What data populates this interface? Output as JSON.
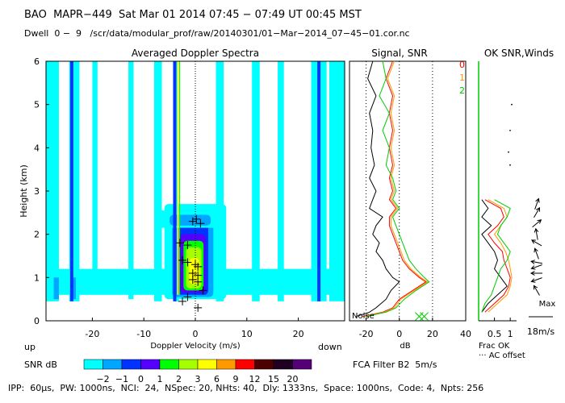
{
  "header": {
    "line1": "BAO  MAPR−449  Sat Mar 01 2014 07:45 − 07:49 UT 00:45 MST",
    "line2": "Dwell  0 −  9   /scr/data/modular_prof/raw/20140301/01−Mar−2014_07−45−01.cor.nc"
  },
  "footer": {
    "text": "IPP:  60μs,  PW: 1000ns,  NCI:  24,  NSpec: 20, NHts: 40,  Dly: 1333ns,  Space: 1000ns,  Code: 4,  Npts: 256",
    "filter": "FCA Filter B2  5m/s"
  },
  "colorbar": {
    "label": "SNR dB",
    "up": "up",
    "down": "down",
    "ticks": [
      "−2",
      "−1",
      "0",
      "1",
      "2",
      "3",
      "6",
      "9",
      "12",
      "15",
      "20"
    ],
    "colors": [
      "#00ffff",
      "#00a6ff",
      "#0033ff",
      "#5500ff",
      "#00ff00",
      "#a6ff00",
      "#ffff00",
      "#ff9900",
      "#ff0000",
      "#4d0000",
      "#200020",
      "#550077"
    ]
  },
  "chart_data": [
    {
      "type": "heatmap",
      "title": "Averaged Doppler Spectra",
      "xlabel": "Doppler Velocity (m/s)",
      "ylabel": "Height (km)",
      "xlim": [
        -29,
        29
      ],
      "ylim": [
        0,
        6
      ],
      "xticks": [
        -20,
        -10,
        0,
        10,
        20
      ],
      "yticks": [
        0,
        1,
        2,
        3,
        4,
        5,
        6
      ],
      "ground_clutter_lines_ms": [
        -24,
        -4,
        24
      ],
      "peak_markers": [
        {
          "v": 0.2,
          "h": 2.35
        },
        {
          "v": -0.5,
          "h": 2.3
        },
        {
          "v": 1.0,
          "h": 2.25
        },
        {
          "v": -3.0,
          "h": 1.8
        },
        {
          "v": -1.5,
          "h": 1.75
        },
        {
          "v": -2.5,
          "h": 1.4
        },
        {
          "v": -1.5,
          "h": 1.35
        },
        {
          "v": 0,
          "h": 1.3
        },
        {
          "v": 0.5,
          "h": 1.25
        },
        {
          "v": -0.5,
          "h": 1.1
        },
        {
          "v": 0.5,
          "h": 1.05
        },
        {
          "v": -0.5,
          "h": 0.95
        },
        {
          "v": 0.5,
          "h": 0.9
        },
        {
          "v": 1.5,
          "h": 0.7
        },
        {
          "v": -1.5,
          "h": 0.55
        },
        {
          "v": -2.5,
          "h": 0.45
        },
        {
          "v": 0.5,
          "h": 0.3
        }
      ]
    },
    {
      "type": "line",
      "title": "Signal, SNR",
      "xlabel": "dB",
      "xlim": [
        -30,
        40
      ],
      "ylim": [
        0,
        6
      ],
      "xticks": [
        -20,
        0,
        20,
        40
      ],
      "noise_label": "Noise",
      "reference_lines_db": [
        -20,
        0,
        20
      ],
      "series": [
        {
          "name": "",
          "color": "#000000",
          "h": [
            0.1,
            0.2,
            0.3,
            0.5,
            0.7,
            0.9,
            1.0,
            1.2,
            1.4,
            1.6,
            1.8,
            2.0,
            2.2,
            2.4,
            2.6,
            2.8,
            3.0,
            3.3,
            3.6,
            4.0,
            4.4,
            4.8,
            5.2,
            5.6,
            6.0
          ],
          "v": [
            -26,
            -18,
            -14,
            -8,
            -5,
            0,
            -4,
            -8,
            -10,
            -14,
            -12,
            -16,
            -14,
            -10,
            -18,
            -16,
            -14,
            -18,
            -15,
            -17,
            -16,
            -18,
            -14,
            -19,
            -16
          ]
        },
        {
          "name": "0",
          "color": "#ff0000",
          "h": [
            0.1,
            0.2,
            0.3,
            0.5,
            0.7,
            0.9,
            1.0,
            1.2,
            1.4,
            1.6,
            1.8,
            2.0,
            2.2,
            2.4,
            2.6,
            2.8,
            3.0,
            3.3,
            3.6,
            4.0,
            4.4,
            4.8,
            5.2,
            5.6,
            6.0
          ],
          "v": [
            -22,
            -10,
            -4,
            0,
            8,
            16,
            12,
            6,
            2,
            0,
            -2,
            -4,
            -6,
            -6,
            -2,
            -6,
            -4,
            -6,
            -4,
            -6,
            -4,
            -6,
            -4,
            -8,
            -4
          ]
        },
        {
          "name": "1",
          "color": "#ff9900",
          "h": [
            0.1,
            0.2,
            0.3,
            0.5,
            0.7,
            0.9,
            1.0,
            1.2,
            1.4,
            1.6,
            1.8,
            2.0,
            2.2,
            2.4,
            2.6,
            2.8,
            3.0,
            3.3,
            3.6,
            4.0,
            4.4,
            4.8,
            5.2,
            5.6,
            6.0
          ],
          "v": [
            -21,
            -9,
            -3,
            1,
            9,
            17,
            13,
            7,
            3,
            1,
            -1,
            -3,
            -5,
            -5,
            -1,
            -5,
            -3,
            -5,
            -3,
            -5,
            -3,
            -5,
            -3,
            -7,
            -3
          ]
        },
        {
          "name": "2",
          "color": "#00cc00",
          "h": [
            0.1,
            0.2,
            0.3,
            0.5,
            0.7,
            0.9,
            1.0,
            1.2,
            1.4,
            1.6,
            1.8,
            2.0,
            2.2,
            2.4,
            2.6,
            2.8,
            3.0,
            3.3,
            3.6,
            4.0,
            4.4,
            4.8,
            5.2,
            5.6,
            6.0
          ],
          "v": [
            -20,
            -8,
            -2,
            3,
            10,
            18,
            15,
            10,
            6,
            4,
            2,
            0,
            -2,
            -4,
            0,
            -4,
            -2,
            -4,
            -8,
            -6,
            -10,
            -6,
            -12,
            -8,
            -10
          ]
        }
      ],
      "x_markers": [
        {
          "v": 12,
          "h": 0.1
        },
        {
          "v": 15,
          "h": 0.1
        }
      ]
    },
    {
      "type": "line",
      "title": "OK SNR,Winds",
      "xlabel": "Frac OK",
      "xlim": [
        0,
        1.2
      ],
      "ylim": [
        0,
        6
      ],
      "xticks": [
        0.5,
        1
      ],
      "xticklabels": [
        "0.5",
        "1"
      ],
      "offset_note": "AC offset",
      "legend_labels": [
        "0",
        "1",
        "2"
      ],
      "legend_colors": [
        "#ff0000",
        "#ff9900",
        "#00cc00"
      ],
      "series": [
        {
          "name": "",
          "color": "#000000",
          "h": [
            0.2,
            0.4,
            0.6,
            0.8,
            1.0,
            1.2,
            1.4,
            1.6,
            1.8,
            2.0,
            2.2,
            2.4,
            2.6,
            2.8
          ],
          "v": [
            0.1,
            0.3,
            0.6,
            0.9,
            0.7,
            0.5,
            0.6,
            0.5,
            0.3,
            0.1,
            0.4,
            0.1,
            0.3,
            0.1
          ]
        },
        {
          "name": "0",
          "color": "#ff0000",
          "h": [
            0.2,
            0.4,
            0.6,
            0.8,
            1.0,
            1.2,
            1.4,
            1.6,
            1.8,
            2.0,
            2.2,
            2.4,
            2.6,
            2.8
          ],
          "v": [
            0.2,
            0.5,
            0.8,
            0.95,
            1.0,
            0.9,
            0.8,
            0.75,
            0.5,
            0.3,
            0.6,
            0.8,
            0.7,
            0.2
          ]
        },
        {
          "name": "1",
          "color": "#ff9900",
          "h": [
            0.2,
            0.4,
            0.6,
            0.8,
            1.0,
            1.2,
            1.4,
            1.6,
            1.8,
            2.0,
            2.2,
            2.4,
            2.6,
            2.8
          ],
          "v": [
            0.3,
            0.6,
            0.9,
            1.0,
            1.05,
            1.0,
            0.95,
            0.85,
            0.7,
            0.5,
            0.7,
            0.9,
            0.8,
            0.3
          ]
        },
        {
          "name": "2",
          "color": "#00cc00",
          "h": [
            0.2,
            0.4,
            0.6,
            0.8,
            1.0,
            1.2,
            1.4,
            1.6,
            1.8,
            2.0,
            2.2,
            2.4,
            2.6,
            2.8
          ],
          "v": [
            0.1,
            0.2,
            0.4,
            0.5,
            0.6,
            0.7,
            0.9,
            1.0,
            0.8,
            0.6,
            0.7,
            0.9,
            1.0,
            0.5
          ]
        }
      ]
    },
    {
      "type": "scatter",
      "title": "Winds",
      "max_label": "Max",
      "scale_label": "18m/s",
      "arrows": [
        {
          "h": 2.7,
          "dir": 20
        },
        {
          "h": 2.5,
          "dir": 30
        },
        {
          "h": 2.25,
          "dir": 50
        },
        {
          "h": 2.0,
          "dir": 350
        },
        {
          "h": 1.8,
          "dir": 300
        },
        {
          "h": 1.55,
          "dir": 340
        },
        {
          "h": 1.35,
          "dir": 280
        },
        {
          "h": 1.25,
          "dir": 250
        },
        {
          "h": 1.1,
          "dir": 270
        },
        {
          "h": 0.95,
          "dir": 250
        },
        {
          "h": 0.7,
          "dir": 330
        }
      ],
      "dots": [
        {
          "h": 5.0,
          "x": 0.35
        },
        {
          "h": 4.4,
          "x": 0.3
        },
        {
          "h": 3.9,
          "x": 0.25
        },
        {
          "h": 3.6,
          "x": 0.3
        }
      ]
    }
  ]
}
